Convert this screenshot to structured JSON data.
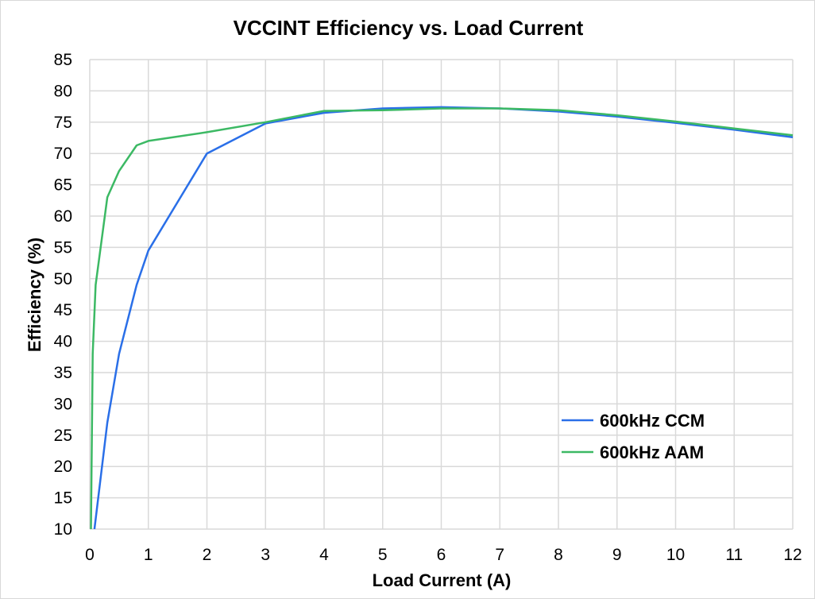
{
  "chart_data": {
    "type": "line",
    "title": "VCCINT Efficiency vs. Load Current",
    "xlabel": "Load Current (A)",
    "ylabel": "Efficiency (%)",
    "xlim": [
      0,
      12
    ],
    "ylim": [
      10,
      85
    ],
    "x_ticks": [
      0,
      1,
      2,
      3,
      4,
      5,
      6,
      7,
      8,
      9,
      10,
      11,
      12
    ],
    "y_ticks": [
      10,
      15,
      20,
      25,
      30,
      35,
      40,
      45,
      50,
      55,
      60,
      65,
      70,
      75,
      80,
      85
    ],
    "grid": true,
    "legend_position": "bottom-right",
    "series": [
      {
        "name": "600kHz CCM",
        "color": "#2a6fe8",
        "points": [
          [
            0.08,
            10
          ],
          [
            0.3,
            27
          ],
          [
            0.5,
            38
          ],
          [
            0.8,
            49
          ],
          [
            1,
            54.5
          ],
          [
            2,
            70
          ],
          [
            3,
            74.8
          ],
          [
            4,
            76.5
          ],
          [
            5,
            77.2
          ],
          [
            6,
            77.4
          ],
          [
            7,
            77.2
          ],
          [
            8,
            76.7
          ],
          [
            9,
            75.9
          ],
          [
            10,
            74.9
          ],
          [
            11,
            73.8
          ],
          [
            12,
            72.6
          ]
        ]
      },
      {
        "name": "600kHz AAM",
        "color": "#3cb964",
        "points": [
          [
            0.02,
            10
          ],
          [
            0.05,
            38
          ],
          [
            0.1,
            49
          ],
          [
            0.3,
            63
          ],
          [
            0.5,
            67.2
          ],
          [
            0.8,
            71.3
          ],
          [
            1,
            72
          ],
          [
            2,
            73.4
          ],
          [
            3,
            75
          ],
          [
            4,
            76.8
          ],
          [
            5,
            76.9
          ],
          [
            6,
            77.2
          ],
          [
            7,
            77.2
          ],
          [
            8,
            76.9
          ],
          [
            9,
            76.1
          ],
          [
            10,
            75.1
          ],
          [
            11,
            74
          ],
          [
            12,
            72.9
          ]
        ]
      }
    ]
  }
}
